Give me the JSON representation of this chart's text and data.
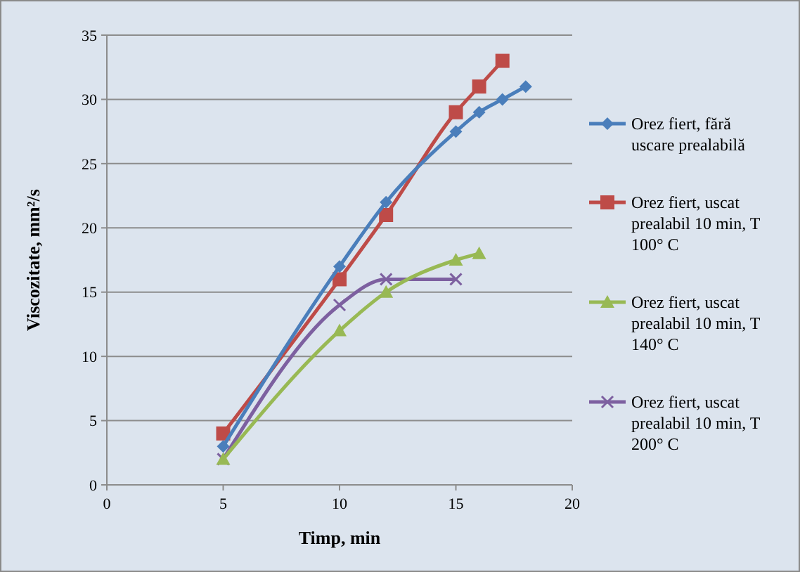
{
  "chart_data": {
    "type": "line",
    "xlabel": "Timp, min",
    "ylabel": "Viscozitate, mm²/s",
    "xlim": [
      0,
      20
    ],
    "xticks": [
      0,
      5,
      10,
      15,
      20
    ],
    "ylim": [
      0,
      35
    ],
    "yticks": [
      0,
      5,
      10,
      15,
      20,
      25,
      30,
      35
    ],
    "grid": "y",
    "legend": "right",
    "line_style": "solid",
    "series": [
      {
        "name": "Orez fiert, fără uscare prealabilă",
        "color": "#4a7ebb",
        "marker": "diamond",
        "x": [
          5,
          10,
          12,
          15,
          16,
          17,
          18
        ],
        "values": [
          3,
          17,
          22,
          27.5,
          29,
          30,
          31
        ]
      },
      {
        "name": "Orez fiert, uscat prealabil 10 min, T 100° C",
        "color": "#be4b48",
        "marker": "square",
        "x": [
          5,
          10,
          12,
          15,
          16,
          17
        ],
        "values": [
          4,
          16,
          21,
          29,
          31,
          33
        ]
      },
      {
        "name": "Orez fiert, uscat prealabil 10 min, T 140° C",
        "color": "#98b954",
        "marker": "triangle",
        "x": [
          5,
          10,
          12,
          15,
          16
        ],
        "values": [
          2,
          12,
          15,
          17.5,
          18
        ]
      },
      {
        "name": "Orez fiert, uscat prealabil 10 min, T 200° C",
        "color": "#7d60a0",
        "marker": "cross",
        "x": [
          5,
          10,
          12,
          15
        ],
        "values": [
          2,
          14,
          16,
          16
        ]
      }
    ]
  }
}
